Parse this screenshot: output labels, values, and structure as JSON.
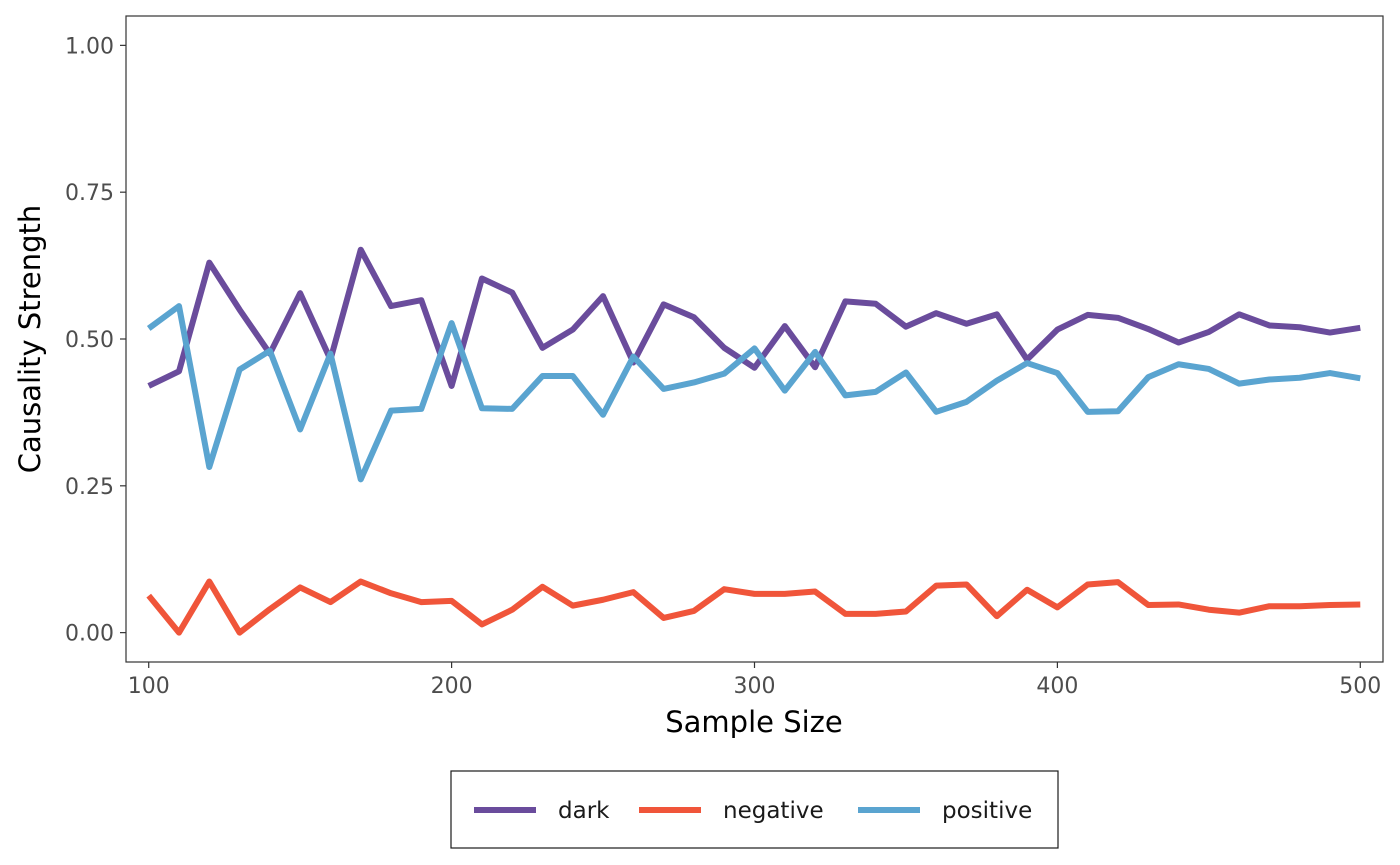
{
  "chart_data": {
    "type": "line",
    "title": "",
    "xlabel": "Sample Size",
    "ylabel": "Causality Strength",
    "xlim": [
      92.5,
      507.5
    ],
    "ylim": [
      -0.05,
      1.05
    ],
    "x_ticks": [
      100,
      200,
      300,
      400,
      500
    ],
    "x_tick_labels": [
      "100",
      "200",
      "300",
      "400",
      "500"
    ],
    "y_ticks": [
      0,
      0.25,
      0.5,
      0.75,
      1
    ],
    "y_tick_labels": [
      "0.00",
      "0.25",
      "0.50",
      "0.75",
      "1.00"
    ],
    "grid": false,
    "legend_position": "bottom",
    "x": [
      100,
      110,
      120,
      130,
      140,
      150,
      160,
      170,
      180,
      190,
      200,
      210,
      220,
      230,
      240,
      250,
      260,
      270,
      280,
      290,
      300,
      310,
      320,
      330,
      340,
      350,
      360,
      370,
      380,
      390,
      400,
      410,
      420,
      430,
      440,
      450,
      460,
      470,
      480,
      490,
      500
    ],
    "series": [
      {
        "name": "dark",
        "color": "#6a4c9c",
        "values": [
          0.42,
          0.445,
          0.63,
          0.55,
          0.475,
          0.578,
          0.465,
          0.652,
          0.556,
          0.566,
          0.42,
          0.603,
          0.579,
          0.485,
          0.516,
          0.573,
          0.46,
          0.559,
          0.537,
          0.485,
          0.451,
          0.522,
          0.452,
          0.564,
          0.56,
          0.521,
          0.544,
          0.526,
          0.542,
          0.465,
          0.516,
          0.541,
          0.536,
          0.517,
          0.494,
          0.512,
          0.542,
          0.523,
          0.52,
          0.511,
          0.519
        ]
      },
      {
        "name": "negative",
        "color": "#f0553a",
        "values": [
          0.063,
          0,
          0.087,
          0,
          0.04,
          0.077,
          0.052,
          0.087,
          0.067,
          0.052,
          0.054,
          0.014,
          0.039,
          0.078,
          0.046,
          0.056,
          0.069,
          0.025,
          0.037,
          0.074,
          0.066,
          0.066,
          0.07,
          0.032,
          0.032,
          0.036,
          0.08,
          0.082,
          0.028,
          0.073,
          0.043,
          0.082,
          0.086,
          0.047,
          0.048,
          0.039,
          0.034,
          0.045,
          0.045,
          0.047,
          0.048
        ]
      },
      {
        "name": "positive",
        "color": "#5aa4d0",
        "values": [
          0.518,
          0.556,
          0.282,
          0.448,
          0.48,
          0.346,
          0.475,
          0.261,
          0.378,
          0.381,
          0.527,
          0.382,
          0.381,
          0.437,
          0.437,
          0.371,
          0.47,
          0.415,
          0.426,
          0.441,
          0.484,
          0.412,
          0.478,
          0.404,
          0.41,
          0.443,
          0.376,
          0.393,
          0.429,
          0.459,
          0.442,
          0.376,
          0.377,
          0.435,
          0.457,
          0.449,
          0.424,
          0.431,
          0.434,
          0.442,
          0.433
        ]
      }
    ]
  }
}
